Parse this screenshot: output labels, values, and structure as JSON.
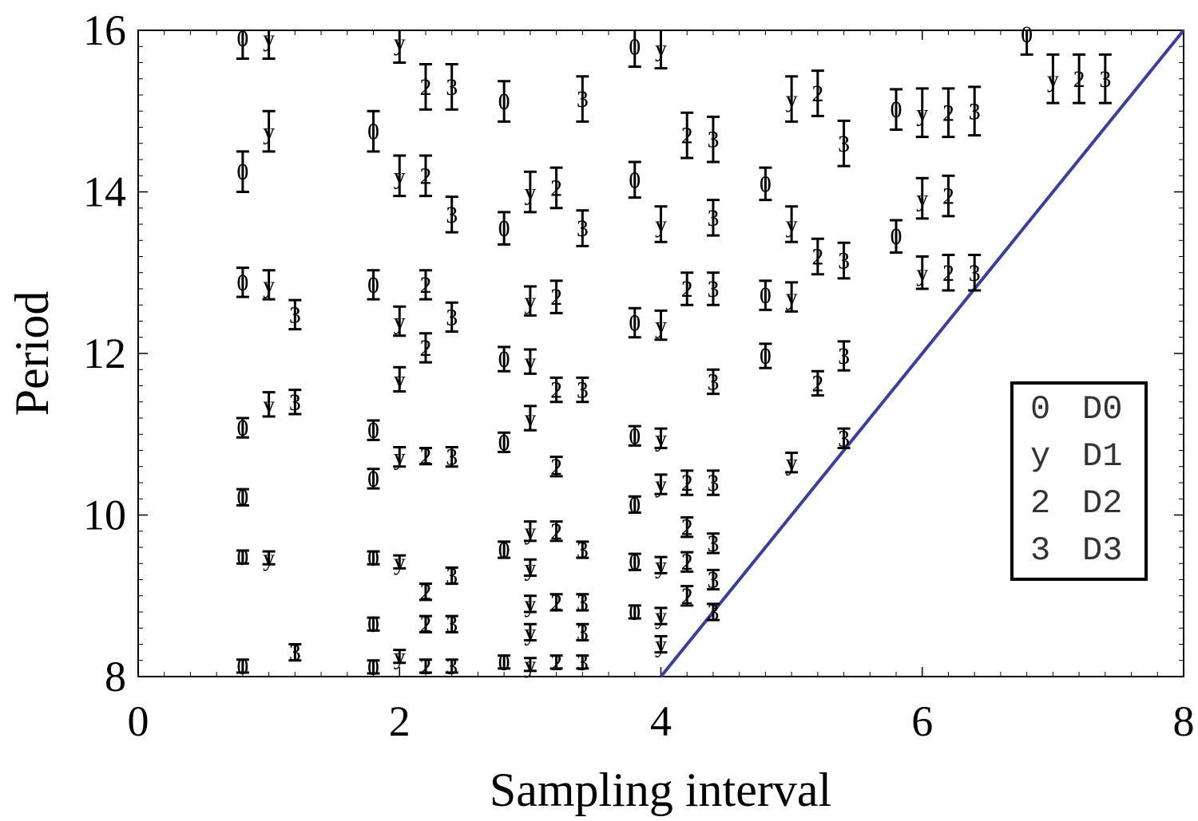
{
  "chart_data": {
    "type": "scatter",
    "xlabel": "Sampling interval",
    "ylabel": "Period",
    "xlim": [
      0,
      8
    ],
    "ylim": [
      8,
      16
    ],
    "xticks": [
      "0",
      "2",
      "4",
      "6",
      "8"
    ],
    "yticks": [
      "8",
      "10",
      "12",
      "14",
      "16"
    ],
    "grid": false,
    "legend_position": "right",
    "line_color": "#3a3f9a",
    "line": {
      "name": "",
      "x": [
        4,
        8
      ],
      "y": [
        8,
        16
      ]
    },
    "series": [
      {
        "name": "D0",
        "marker": "0",
        "points": [
          {
            "x": 0.8,
            "y": 15.9,
            "err": 0.25
          },
          {
            "x": 0.8,
            "y": 14.25,
            "err": 0.25
          },
          {
            "x": 0.8,
            "y": 12.88,
            "err": 0.18
          },
          {
            "x": 0.8,
            "y": 11.08,
            "err": 0.12
          },
          {
            "x": 0.8,
            "y": 10.22,
            "err": 0.1
          },
          {
            "x": 0.8,
            "y": 9.48,
            "err": 0.08
          },
          {
            "x": 0.8,
            "y": 8.13,
            "err": 0.08
          },
          {
            "x": 1.8,
            "y": 14.75,
            "err": 0.25
          },
          {
            "x": 1.8,
            "y": 12.85,
            "err": 0.18
          },
          {
            "x": 1.8,
            "y": 11.05,
            "err": 0.12
          },
          {
            "x": 1.8,
            "y": 10.45,
            "err": 0.12
          },
          {
            "x": 1.8,
            "y": 9.47,
            "err": 0.08
          },
          {
            "x": 1.8,
            "y": 8.65,
            "err": 0.08
          },
          {
            "x": 1.8,
            "y": 8.12,
            "err": 0.08
          },
          {
            "x": 2.8,
            "y": 15.12,
            "err": 0.25
          },
          {
            "x": 2.8,
            "y": 13.55,
            "err": 0.2
          },
          {
            "x": 2.8,
            "y": 11.93,
            "err": 0.15
          },
          {
            "x": 2.8,
            "y": 10.9,
            "err": 0.12
          },
          {
            "x": 2.8,
            "y": 9.57,
            "err": 0.1
          },
          {
            "x": 2.8,
            "y": 8.18,
            "err": 0.08
          },
          {
            "x": 3.8,
            "y": 15.8,
            "err": 0.25
          },
          {
            "x": 3.8,
            "y": 14.15,
            "err": 0.22
          },
          {
            "x": 3.8,
            "y": 12.38,
            "err": 0.18
          },
          {
            "x": 3.8,
            "y": 10.98,
            "err": 0.12
          },
          {
            "x": 3.8,
            "y": 10.13,
            "err": 0.1
          },
          {
            "x": 3.8,
            "y": 9.42,
            "err": 0.1
          },
          {
            "x": 3.8,
            "y": 8.8,
            "err": 0.08
          },
          {
            "x": 4.8,
            "y": 14.1,
            "err": 0.2
          },
          {
            "x": 4.8,
            "y": 12.72,
            "err": 0.18
          },
          {
            "x": 4.8,
            "y": 11.97,
            "err": 0.15
          },
          {
            "x": 5.8,
            "y": 15.02,
            "err": 0.25
          },
          {
            "x": 5.8,
            "y": 13.45,
            "err": 0.2
          },
          {
            "x": 6.8,
            "y": 15.95,
            "err": 0.25
          }
        ]
      },
      {
        "name": "D1",
        "marker": "y",
        "points": [
          {
            "x": 1.0,
            "y": 15.9,
            "err": 0.25
          },
          {
            "x": 1.0,
            "y": 14.75,
            "err": 0.25
          },
          {
            "x": 1.0,
            "y": 12.85,
            "err": 0.18
          },
          {
            "x": 1.0,
            "y": 11.37,
            "err": 0.15
          },
          {
            "x": 1.0,
            "y": 9.47,
            "err": 0.08
          },
          {
            "x": 2.0,
            "y": 15.85,
            "err": 0.25
          },
          {
            "x": 2.0,
            "y": 14.2,
            "err": 0.25
          },
          {
            "x": 2.0,
            "y": 12.4,
            "err": 0.18
          },
          {
            "x": 2.0,
            "y": 11.68,
            "err": 0.15
          },
          {
            "x": 2.0,
            "y": 10.72,
            "err": 0.12
          },
          {
            "x": 2.0,
            "y": 9.42,
            "err": 0.08
          },
          {
            "x": 2.0,
            "y": 8.25,
            "err": 0.08
          },
          {
            "x": 3.0,
            "y": 14.0,
            "err": 0.25
          },
          {
            "x": 3.0,
            "y": 12.65,
            "err": 0.18
          },
          {
            "x": 3.0,
            "y": 11.9,
            "err": 0.15
          },
          {
            "x": 3.0,
            "y": 11.2,
            "err": 0.15
          },
          {
            "x": 3.0,
            "y": 9.8,
            "err": 0.12
          },
          {
            "x": 3.0,
            "y": 9.35,
            "err": 0.1
          },
          {
            "x": 3.0,
            "y": 8.9,
            "err": 0.1
          },
          {
            "x": 3.0,
            "y": 8.55,
            "err": 0.1
          },
          {
            "x": 3.0,
            "y": 8.15,
            "err": 0.08
          },
          {
            "x": 4.0,
            "y": 15.78,
            "err": 0.25
          },
          {
            "x": 4.0,
            "y": 13.6,
            "err": 0.22
          },
          {
            "x": 4.0,
            "y": 12.35,
            "err": 0.18
          },
          {
            "x": 4.0,
            "y": 10.95,
            "err": 0.12
          },
          {
            "x": 4.0,
            "y": 10.38,
            "err": 0.12
          },
          {
            "x": 4.0,
            "y": 9.38,
            "err": 0.1
          },
          {
            "x": 4.0,
            "y": 8.75,
            "err": 0.1
          },
          {
            "x": 4.0,
            "y": 8.4,
            "err": 0.1
          },
          {
            "x": 5.0,
            "y": 15.15,
            "err": 0.28
          },
          {
            "x": 5.0,
            "y": 13.6,
            "err": 0.22
          },
          {
            "x": 5.0,
            "y": 12.7,
            "err": 0.18
          },
          {
            "x": 5.0,
            "y": 10.65,
            "err": 0.12
          },
          {
            "x": 6.0,
            "y": 14.98,
            "err": 0.3
          },
          {
            "x": 6.0,
            "y": 13.92,
            "err": 0.25
          },
          {
            "x": 6.0,
            "y": 13.0,
            "err": 0.2
          },
          {
            "x": 7.0,
            "y": 15.4,
            "err": 0.3
          }
        ]
      },
      {
        "name": "D2",
        "marker": "2",
        "points": [
          {
            "x": 2.2,
            "y": 15.3,
            "err": 0.28
          },
          {
            "x": 2.2,
            "y": 14.2,
            "err": 0.25
          },
          {
            "x": 2.2,
            "y": 12.85,
            "err": 0.18
          },
          {
            "x": 2.2,
            "y": 12.07,
            "err": 0.18
          },
          {
            "x": 2.2,
            "y": 10.73,
            "err": 0.1
          },
          {
            "x": 2.2,
            "y": 9.05,
            "err": 0.1
          },
          {
            "x": 2.2,
            "y": 8.65,
            "err": 0.1
          },
          {
            "x": 2.2,
            "y": 8.13,
            "err": 0.08
          },
          {
            "x": 3.2,
            "y": 14.05,
            "err": 0.25
          },
          {
            "x": 3.2,
            "y": 12.7,
            "err": 0.2
          },
          {
            "x": 3.2,
            "y": 11.55,
            "err": 0.15
          },
          {
            "x": 3.2,
            "y": 10.6,
            "err": 0.12
          },
          {
            "x": 3.2,
            "y": 9.8,
            "err": 0.12
          },
          {
            "x": 3.2,
            "y": 8.92,
            "err": 0.1
          },
          {
            "x": 3.2,
            "y": 8.18,
            "err": 0.08
          },
          {
            "x": 4.2,
            "y": 14.7,
            "err": 0.28
          },
          {
            "x": 4.2,
            "y": 12.8,
            "err": 0.2
          },
          {
            "x": 4.2,
            "y": 10.4,
            "err": 0.15
          },
          {
            "x": 4.2,
            "y": 9.85,
            "err": 0.12
          },
          {
            "x": 4.2,
            "y": 9.42,
            "err": 0.12
          },
          {
            "x": 4.2,
            "y": 9.0,
            "err": 0.12
          },
          {
            "x": 5.2,
            "y": 15.22,
            "err": 0.28
          },
          {
            "x": 5.2,
            "y": 13.2,
            "err": 0.22
          },
          {
            "x": 5.2,
            "y": 11.63,
            "err": 0.15
          },
          {
            "x": 6.2,
            "y": 14.98,
            "err": 0.3
          },
          {
            "x": 6.2,
            "y": 13.95,
            "err": 0.25
          },
          {
            "x": 6.2,
            "y": 13.0,
            "err": 0.22
          },
          {
            "x": 7.2,
            "y": 15.4,
            "err": 0.3
          }
        ]
      },
      {
        "name": "D3",
        "marker": "3",
        "points": [
          {
            "x": 1.2,
            "y": 12.48,
            "err": 0.18
          },
          {
            "x": 1.2,
            "y": 11.4,
            "err": 0.15
          },
          {
            "x": 1.2,
            "y": 8.3,
            "err": 0.1
          },
          {
            "x": 2.4,
            "y": 15.3,
            "err": 0.28
          },
          {
            "x": 2.4,
            "y": 13.72,
            "err": 0.22
          },
          {
            "x": 2.4,
            "y": 12.45,
            "err": 0.18
          },
          {
            "x": 2.4,
            "y": 10.72,
            "err": 0.12
          },
          {
            "x": 2.4,
            "y": 9.25,
            "err": 0.1
          },
          {
            "x": 2.4,
            "y": 8.65,
            "err": 0.1
          },
          {
            "x": 2.4,
            "y": 8.13,
            "err": 0.08
          },
          {
            "x": 3.4,
            "y": 15.15,
            "err": 0.28
          },
          {
            "x": 3.4,
            "y": 13.55,
            "err": 0.22
          },
          {
            "x": 3.4,
            "y": 11.55,
            "err": 0.15
          },
          {
            "x": 3.4,
            "y": 9.57,
            "err": 0.1
          },
          {
            "x": 3.4,
            "y": 8.92,
            "err": 0.1
          },
          {
            "x": 3.4,
            "y": 8.55,
            "err": 0.1
          },
          {
            "x": 3.4,
            "y": 8.18,
            "err": 0.08
          },
          {
            "x": 4.4,
            "y": 14.65,
            "err": 0.28
          },
          {
            "x": 4.4,
            "y": 13.68,
            "err": 0.22
          },
          {
            "x": 4.4,
            "y": 12.8,
            "err": 0.2
          },
          {
            "x": 4.4,
            "y": 11.65,
            "err": 0.15
          },
          {
            "x": 4.4,
            "y": 10.4,
            "err": 0.15
          },
          {
            "x": 4.4,
            "y": 9.65,
            "err": 0.12
          },
          {
            "x": 4.4,
            "y": 9.2,
            "err": 0.12
          },
          {
            "x": 4.4,
            "y": 8.8,
            "err": 0.1
          },
          {
            "x": 5.4,
            "y": 14.6,
            "err": 0.28
          },
          {
            "x": 5.4,
            "y": 13.15,
            "err": 0.22
          },
          {
            "x": 5.4,
            "y": 11.97,
            "err": 0.18
          },
          {
            "x": 5.4,
            "y": 10.95,
            "err": 0.12
          },
          {
            "x": 6.4,
            "y": 15.0,
            "err": 0.3
          },
          {
            "x": 6.4,
            "y": 13.0,
            "err": 0.22
          },
          {
            "x": 7.4,
            "y": 15.4,
            "err": 0.3
          }
        ]
      }
    ],
    "legend": [
      {
        "symbol": "0",
        "label": "D0"
      },
      {
        "symbol": "y",
        "label": "D1"
      },
      {
        "symbol": "2",
        "label": "D2"
      },
      {
        "symbol": "3",
        "label": "D3"
      }
    ]
  }
}
